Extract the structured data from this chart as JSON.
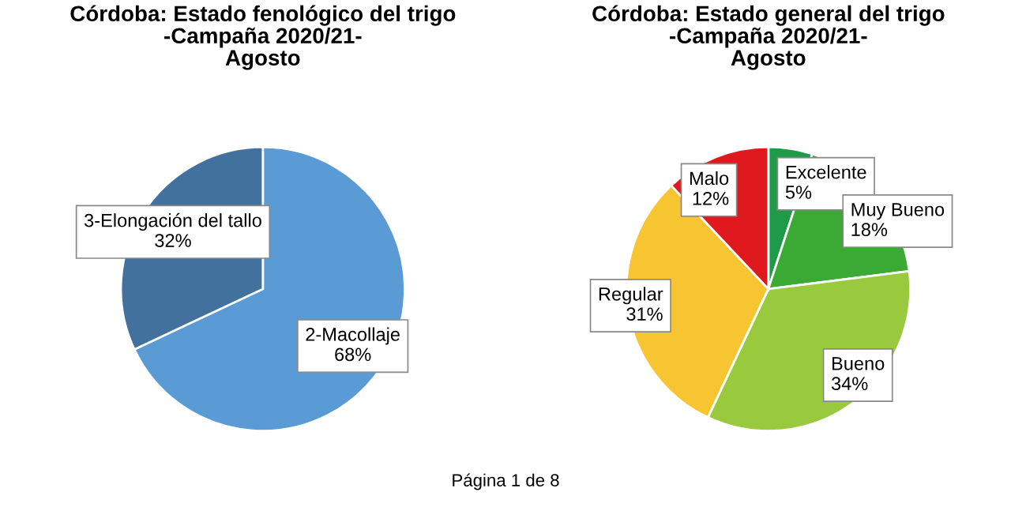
{
  "chart_data": [
    {
      "type": "pie",
      "title": "Córdoba: Estado fenológico del trigo\n-Campaña 2020/21-\nAgosto",
      "categories": [
        "2-Macollaje",
        "3-Elongación del tallo"
      ],
      "values": [
        68,
        32
      ],
      "colors": [
        "#5b9bd5",
        "#41719c"
      ],
      "value_labels": [
        "68%",
        "32%"
      ],
      "annotations": [
        "Página 1 de 8"
      ]
    },
    {
      "type": "pie",
      "title": "Córdoba: Estado general del trigo\n-Campaña 2020/21-\nAgosto",
      "categories": [
        "Excelente",
        "Muy Bueno",
        "Bueno",
        "Regular",
        "Malo"
      ],
      "values": [
        5,
        18,
        34,
        31,
        12
      ],
      "colors": [
        "#1e9a48",
        "#3aaa35",
        "#99c93c",
        "#f7c531",
        "#e0191f"
      ],
      "value_labels": [
        "5%",
        "18%",
        "34%",
        "31%",
        "12%"
      ]
    }
  ]
}
